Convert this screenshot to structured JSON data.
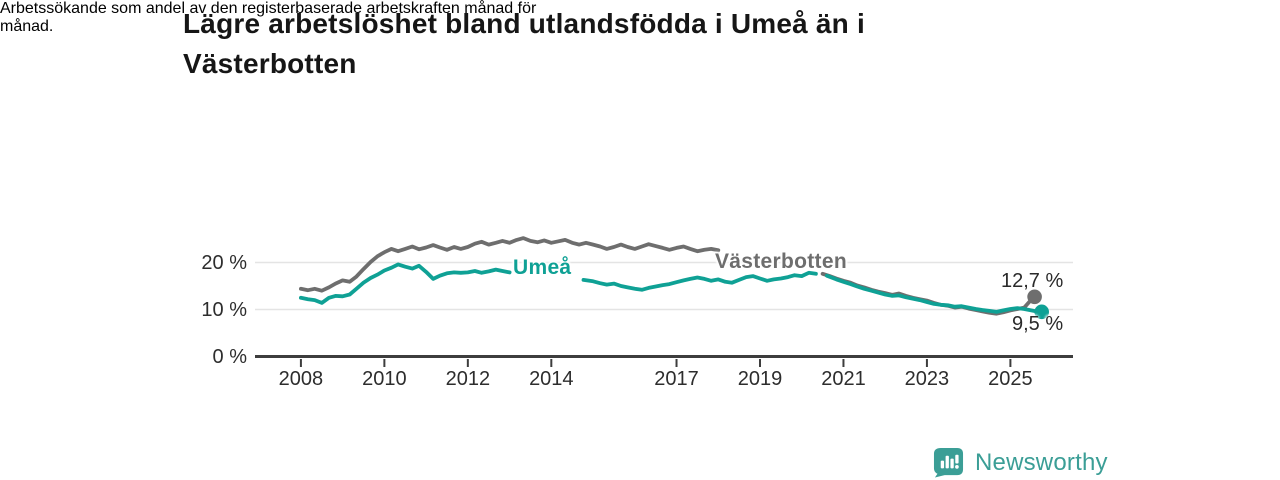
{
  "title": "Lägre arbetslöshet bland utlandsfödda i Umeå än i Västerbotten",
  "title_lines": [
    "Lägre arbetslöshet bland utlandsfödda i Umeå än i",
    "Västerbotten"
  ],
  "subtitle": "Arbetssökande som andel av den registerbaserade arbetskraften månad för månad.",
  "subtitle_lines": [
    "Arbetssökande som andel av den registerbaserade arbetskraften månad för",
    "månad."
  ],
  "branding": {
    "logo_text": "Newsworthy",
    "brand_color": "#3b9e96"
  },
  "chart_data": {
    "type": "line",
    "unit": "%",
    "ylim": [
      0,
      27
    ],
    "xlim": [
      2006.9,
      2026.5
    ],
    "grid": true,
    "grid_color": "#e4e4e4",
    "axis_color": "#3d3d3d",
    "yticks": [
      {
        "value": 0,
        "label": "0 %"
      },
      {
        "value": 10,
        "label": "10 %"
      },
      {
        "value": 20,
        "label": "20 %"
      }
    ],
    "xticks": [
      {
        "value": 2008,
        "label": "2008"
      },
      {
        "value": 2010,
        "label": "2010"
      },
      {
        "value": 2012,
        "label": "2012"
      },
      {
        "value": 2014,
        "label": "2014"
      },
      {
        "value": 2017,
        "label": "2017"
      },
      {
        "value": 2019,
        "label": "2019"
      },
      {
        "value": 2021,
        "label": "2021"
      },
      {
        "value": 2023,
        "label": "2023"
      },
      {
        "value": 2025,
        "label": "2025"
      }
    ],
    "series": [
      {
        "name": "Västerbotten",
        "color": "#6e6e6e",
        "end_label": "12,7 %",
        "end_value": 12.7,
        "segments": [
          [
            [
              2008.0,
              14.4
            ],
            [
              2008.17,
              14.1
            ],
            [
              2008.33,
              14.4
            ],
            [
              2008.5,
              14.0
            ],
            [
              2008.67,
              14.7
            ],
            [
              2008.83,
              15.5
            ],
            [
              2009.0,
              16.2
            ],
            [
              2009.17,
              15.9
            ],
            [
              2009.33,
              17.0
            ],
            [
              2009.5,
              18.6
            ],
            [
              2009.67,
              20.1
            ],
            [
              2009.83,
              21.3
            ],
            [
              2010.0,
              22.2
            ],
            [
              2010.17,
              22.9
            ],
            [
              2010.33,
              22.4
            ],
            [
              2010.5,
              22.9
            ],
            [
              2010.67,
              23.4
            ],
            [
              2010.83,
              22.8
            ],
            [
              2011.0,
              23.2
            ],
            [
              2011.17,
              23.7
            ],
            [
              2011.33,
              23.2
            ],
            [
              2011.5,
              22.7
            ],
            [
              2011.67,
              23.3
            ],
            [
              2011.83,
              22.9
            ],
            [
              2012.0,
              23.3
            ],
            [
              2012.17,
              24.0
            ],
            [
              2012.33,
              24.4
            ],
            [
              2012.5,
              23.8
            ],
            [
              2012.67,
              24.2
            ],
            [
              2012.83,
              24.6
            ],
            [
              2013.0,
              24.2
            ],
            [
              2013.17,
              24.8
            ],
            [
              2013.33,
              25.2
            ],
            [
              2013.5,
              24.6
            ],
            [
              2013.67,
              24.3
            ],
            [
              2013.83,
              24.7
            ],
            [
              2014.0,
              24.2
            ],
            [
              2014.17,
              24.5
            ],
            [
              2014.33,
              24.8
            ],
            [
              2014.5,
              24.2
            ],
            [
              2014.67,
              23.8
            ],
            [
              2014.83,
              24.2
            ],
            [
              2015.0,
              23.8
            ],
            [
              2015.17,
              23.4
            ],
            [
              2015.33,
              22.9
            ],
            [
              2015.5,
              23.3
            ],
            [
              2015.67,
              23.8
            ],
            [
              2015.83,
              23.3
            ],
            [
              2016.0,
              22.9
            ],
            [
              2016.17,
              23.4
            ],
            [
              2016.33,
              23.9
            ],
            [
              2016.5,
              23.5
            ],
            [
              2016.67,
              23.1
            ],
            [
              2016.83,
              22.7
            ],
            [
              2017.0,
              23.1
            ],
            [
              2017.17,
              23.4
            ],
            [
              2017.33,
              22.9
            ],
            [
              2017.5,
              22.4
            ],
            [
              2017.67,
              22.7
            ],
            [
              2017.83,
              22.9
            ],
            [
              2018.0,
              22.6
            ]
          ],
          [
            [
              2020.5,
              17.6
            ],
            [
              2020.67,
              17.1
            ],
            [
              2020.83,
              16.6
            ],
            [
              2021.0,
              16.1
            ],
            [
              2021.17,
              15.7
            ],
            [
              2021.33,
              15.1
            ],
            [
              2021.5,
              14.7
            ],
            [
              2021.67,
              14.2
            ],
            [
              2021.83,
              13.8
            ],
            [
              2022.0,
              13.5
            ],
            [
              2022.17,
              13.1
            ],
            [
              2022.33,
              13.4
            ],
            [
              2022.5,
              12.9
            ],
            [
              2022.67,
              12.5
            ],
            [
              2022.83,
              12.2
            ],
            [
              2023.0,
              11.9
            ],
            [
              2023.17,
              11.4
            ],
            [
              2023.33,
              11.0
            ],
            [
              2023.5,
              10.8
            ],
            [
              2023.67,
              10.4
            ],
            [
              2023.83,
              10.6
            ],
            [
              2024.0,
              10.2
            ],
            [
              2024.17,
              9.9
            ],
            [
              2024.33,
              9.6
            ],
            [
              2024.5,
              9.3
            ],
            [
              2024.67,
              9.1
            ],
            [
              2024.83,
              9.4
            ],
            [
              2025.0,
              9.8
            ],
            [
              2025.17,
              10.1
            ],
            [
              2025.33,
              10.4
            ],
            [
              2025.45,
              11.6
            ],
            [
              2025.58,
              12.7
            ]
          ]
        ]
      },
      {
        "name": "Umeå",
        "color": "#0fa195",
        "end_label": "9,5 %",
        "end_value": 9.5,
        "segments": [
          [
            [
              2008.0,
              12.5
            ],
            [
              2008.17,
              12.2
            ],
            [
              2008.33,
              12.0
            ],
            [
              2008.5,
              11.4
            ],
            [
              2008.67,
              12.5
            ],
            [
              2008.83,
              12.9
            ],
            [
              2009.0,
              12.8
            ],
            [
              2009.17,
              13.2
            ],
            [
              2009.33,
              14.4
            ],
            [
              2009.5,
              15.7
            ],
            [
              2009.67,
              16.7
            ],
            [
              2009.83,
              17.4
            ],
            [
              2010.0,
              18.3
            ],
            [
              2010.17,
              18.9
            ],
            [
              2010.33,
              19.6
            ],
            [
              2010.5,
              19.1
            ],
            [
              2010.67,
              18.7
            ],
            [
              2010.83,
              19.3
            ],
            [
              2011.0,
              18.0
            ],
            [
              2011.17,
              16.5
            ],
            [
              2011.33,
              17.2
            ],
            [
              2011.5,
              17.7
            ],
            [
              2011.67,
              17.9
            ],
            [
              2011.83,
              17.8
            ],
            [
              2012.0,
              17.9
            ],
            [
              2012.17,
              18.2
            ],
            [
              2012.33,
              17.8
            ],
            [
              2012.5,
              18.1
            ],
            [
              2012.67,
              18.5
            ],
            [
              2012.83,
              18.2
            ],
            [
              2013.0,
              17.9
            ]
          ],
          [
            [
              2014.77,
              16.3
            ],
            [
              2015.0,
              16.0
            ],
            [
              2015.17,
              15.6
            ],
            [
              2015.33,
              15.3
            ],
            [
              2015.5,
              15.5
            ],
            [
              2015.67,
              15.0
            ],
            [
              2015.83,
              14.7
            ],
            [
              2016.0,
              14.4
            ],
            [
              2016.17,
              14.2
            ],
            [
              2016.33,
              14.6
            ],
            [
              2016.5,
              14.9
            ],
            [
              2016.67,
              15.2
            ],
            [
              2016.83,
              15.4
            ],
            [
              2017.0,
              15.8
            ],
            [
              2017.17,
              16.2
            ],
            [
              2017.33,
              16.5
            ],
            [
              2017.5,
              16.8
            ],
            [
              2017.67,
              16.5
            ],
            [
              2017.83,
              16.1
            ],
            [
              2018.0,
              16.4
            ],
            [
              2018.17,
              15.9
            ],
            [
              2018.33,
              15.7
            ],
            [
              2018.5,
              16.3
            ],
            [
              2018.67,
              16.9
            ],
            [
              2018.83,
              17.1
            ],
            [
              2019.0,
              16.6
            ],
            [
              2019.17,
              16.1
            ],
            [
              2019.33,
              16.4
            ],
            [
              2019.5,
              16.6
            ],
            [
              2019.67,
              16.9
            ],
            [
              2019.83,
              17.3
            ],
            [
              2020.0,
              17.1
            ],
            [
              2020.17,
              17.8
            ],
            [
              2020.34,
              17.6
            ]
          ],
          [
            [
              2020.6,
              17.2
            ],
            [
              2020.83,
              16.4
            ],
            [
              2021.0,
              15.9
            ],
            [
              2021.17,
              15.4
            ],
            [
              2021.33,
              14.9
            ],
            [
              2021.5,
              14.4
            ],
            [
              2021.67,
              14.0
            ],
            [
              2021.83,
              13.6
            ],
            [
              2022.0,
              13.2
            ],
            [
              2022.17,
              12.9
            ],
            [
              2022.33,
              13.0
            ],
            [
              2022.5,
              12.6
            ],
            [
              2022.67,
              12.3
            ],
            [
              2022.83,
              12.0
            ],
            [
              2023.0,
              11.6
            ],
            [
              2023.17,
              11.2
            ],
            [
              2023.33,
              11.0
            ],
            [
              2023.5,
              10.9
            ],
            [
              2023.67,
              10.6
            ],
            [
              2023.83,
              10.7
            ],
            [
              2024.0,
              10.4
            ],
            [
              2024.17,
              10.1
            ],
            [
              2024.33,
              9.9
            ],
            [
              2024.5,
              9.7
            ],
            [
              2024.67,
              9.5
            ],
            [
              2024.83,
              9.8
            ],
            [
              2025.0,
              10.1
            ],
            [
              2025.17,
              10.3
            ],
            [
              2025.33,
              10.1
            ],
            [
              2025.5,
              9.8
            ],
            [
              2025.62,
              9.6
            ],
            [
              2025.75,
              9.5
            ]
          ]
        ]
      }
    ]
  }
}
